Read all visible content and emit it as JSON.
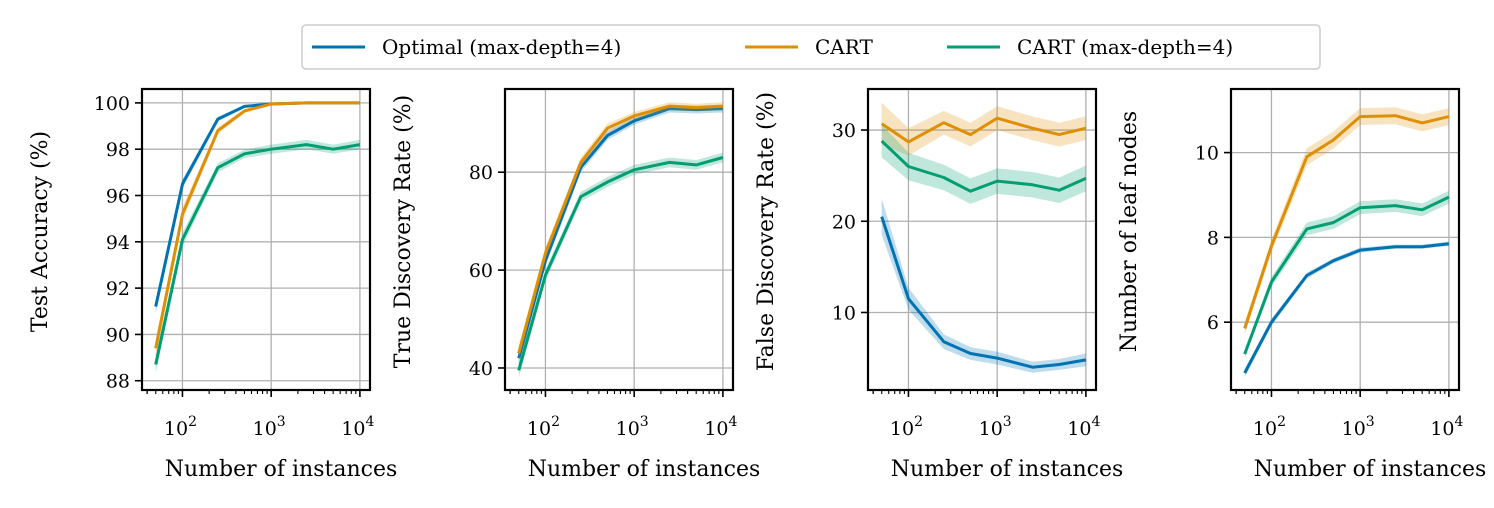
{
  "legend": {
    "entries": [
      {
        "label": "Optimal (max-depth=4)",
        "color": "#0173b2"
      },
      {
        "label": "CART",
        "color": "#de8f05"
      },
      {
        "label": "CART (max-depth=4)",
        "color": "#029e73"
      }
    ]
  },
  "chart_data": [
    {
      "type": "line",
      "xscale": "log",
      "xlabel": "Number of instances",
      "ylabel": "Test Accuracy (%)",
      "xlim": [
        35,
        13000
      ],
      "ylim": [
        87.6,
        100.6
      ],
      "yticks": [
        88,
        90,
        92,
        94,
        96,
        98,
        100
      ],
      "x": [
        50,
        100,
        250,
        500,
        1000,
        2500,
        5000,
        10000
      ],
      "series": [
        {
          "name": "Optimal (max-depth=4)",
          "values": [
            91.2,
            96.5,
            99.3,
            99.85,
            99.95,
            100.0,
            100.0,
            100.0
          ],
          "band": [
            0.3,
            0.2,
            0.1,
            0.05,
            0.03,
            0.02,
            0.02,
            0.02
          ]
        },
        {
          "name": "CART",
          "values": [
            89.4,
            95.2,
            98.8,
            99.65,
            99.95,
            100.0,
            100.0,
            100.0
          ],
          "band": [
            0.4,
            0.3,
            0.15,
            0.08,
            0.04,
            0.02,
            0.02,
            0.02
          ]
        },
        {
          "name": "CART (max-depth=4)",
          "values": [
            88.7,
            94.1,
            97.2,
            97.8,
            98.0,
            98.2,
            98.0,
            98.2
          ],
          "band": [
            0.4,
            0.3,
            0.2,
            0.18,
            0.2,
            0.2,
            0.2,
            0.2
          ]
        }
      ]
    },
    {
      "type": "line",
      "xscale": "log",
      "xlabel": "Number of instances",
      "ylabel": "True Discovery Rate (%)",
      "xlim": [
        35,
        13000
      ],
      "ylim": [
        35.5,
        97
      ],
      "yticks": [
        40,
        60,
        80
      ],
      "x": [
        50,
        100,
        250,
        500,
        1000,
        2500,
        5000,
        10000
      ],
      "series": [
        {
          "name": "Optimal (max-depth=4)",
          "values": [
            42,
            62,
            81,
            87.5,
            90.5,
            93,
            92.8,
            93
          ],
          "band": [
            1.5,
            1.2,
            1.0,
            0.9,
            0.8,
            0.8,
            0.8,
            0.8
          ]
        },
        {
          "name": "CART",
          "values": [
            43,
            63.5,
            82,
            89,
            91.5,
            93.5,
            93.2,
            93.5
          ],
          "band": [
            1.5,
            1.2,
            1.0,
            0.9,
            0.8,
            0.8,
            0.8,
            0.8
          ]
        },
        {
          "name": "CART (max-depth=4)",
          "values": [
            39.5,
            59,
            75,
            78,
            80.5,
            82,
            81.5,
            83
          ],
          "band": [
            1.5,
            1.2,
            1.0,
            1.0,
            1.0,
            1.0,
            1.0,
            1.0
          ]
        }
      ]
    },
    {
      "type": "line",
      "xscale": "log",
      "xlabel": "Number of instances",
      "ylabel": "False Discovery Rate (%)",
      "xlim": [
        35,
        13000
      ],
      "ylim": [
        1.5,
        34.5
      ],
      "yticks": [
        10,
        20,
        30
      ],
      "x": [
        50,
        100,
        250,
        500,
        1000,
        2500,
        5000,
        10000
      ],
      "series": [
        {
          "name": "Optimal (max-depth=4)",
          "values": [
            20.5,
            11.5,
            6.8,
            5.5,
            5.0,
            4.0,
            4.3,
            4.8
          ],
          "band": [
            2.0,
            1.2,
            0.8,
            0.7,
            0.7,
            0.6,
            0.6,
            0.7
          ]
        },
        {
          "name": "CART",
          "values": [
            30.7,
            28.7,
            30.8,
            29.5,
            31.3,
            30.2,
            29.5,
            30.2
          ],
          "band": [
            2.3,
            1.5,
            1.3,
            1.3,
            1.3,
            1.3,
            1.3,
            1.3
          ]
        },
        {
          "name": "CART (max-depth=4)",
          "values": [
            28.8,
            26.0,
            24.8,
            23.3,
            24.4,
            24.0,
            23.4,
            24.7
          ],
          "band": [
            1.8,
            1.5,
            1.4,
            1.4,
            1.4,
            1.4,
            1.4,
            1.4
          ]
        }
      ]
    },
    {
      "type": "line",
      "xscale": "log",
      "xlabel": "Number of instances",
      "ylabel": "Number of leaf nodes",
      "xlim": [
        35,
        13000
      ],
      "ylim": [
        4.4,
        11.5
      ],
      "yticks": [
        6,
        8,
        10
      ],
      "x": [
        50,
        100,
        250,
        500,
        1000,
        2500,
        5000,
        10000
      ],
      "series": [
        {
          "name": "Optimal (max-depth=4)",
          "values": [
            4.8,
            6.0,
            7.1,
            7.45,
            7.7,
            7.78,
            7.78,
            7.85
          ],
          "band": [
            0.1,
            0.08,
            0.07,
            0.06,
            0.06,
            0.05,
            0.05,
            0.05
          ]
        },
        {
          "name": "CART",
          "values": [
            5.85,
            7.8,
            9.9,
            10.3,
            10.85,
            10.87,
            10.7,
            10.85
          ],
          "band": [
            0.15,
            0.15,
            0.2,
            0.2,
            0.2,
            0.2,
            0.2,
            0.2
          ]
        },
        {
          "name": "CART (max-depth=4)",
          "values": [
            5.25,
            6.95,
            8.2,
            8.35,
            8.7,
            8.75,
            8.65,
            8.95
          ],
          "band": [
            0.1,
            0.12,
            0.15,
            0.15,
            0.15,
            0.15,
            0.15,
            0.15
          ]
        }
      ]
    }
  ]
}
